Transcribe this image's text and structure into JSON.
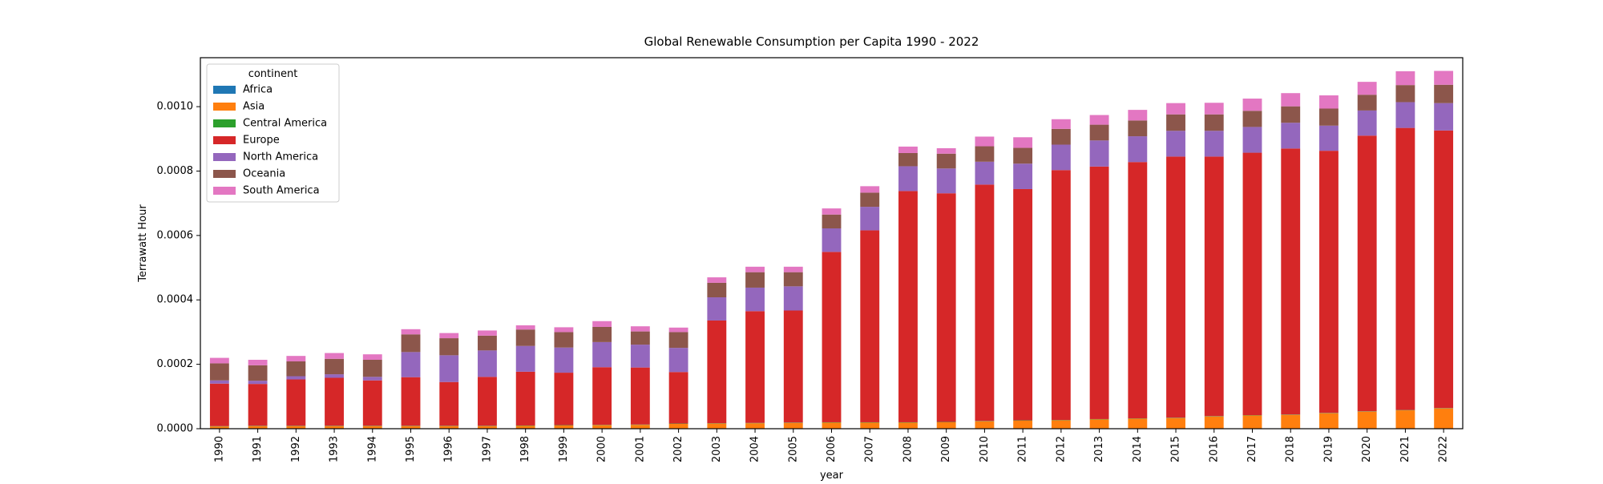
{
  "chart_data": {
    "type": "bar",
    "stacked": true,
    "title": "Global Renewable Consumption per Capita 1990 - 2022",
    "xlabel": "year",
    "ylabel": "Terrawatt Hour",
    "ylim": [
      0,
      0.001152
    ],
    "yticks": [
      "0.0000",
      "0.0002",
      "0.0004",
      "0.0006",
      "0.0008",
      "0.0010"
    ],
    "grid": false,
    "legend_position": "top-left",
    "legend_title": "continent",
    "categories": [
      "1990",
      "1991",
      "1992",
      "1993",
      "1994",
      "1995",
      "1996",
      "1997",
      "1998",
      "1999",
      "2000",
      "2001",
      "2002",
      "2003",
      "2004",
      "2005",
      "2006",
      "2007",
      "2008",
      "2009",
      "2010",
      "2011",
      "2012",
      "2013",
      "2014",
      "2015",
      "2016",
      "2017",
      "2018",
      "2019",
      "2020",
      "2021",
      "2022"
    ],
    "series": [
      {
        "name": "Africa",
        "color": "#1f77b4",
        "values": [
          1e-06,
          1e-06,
          1e-06,
          1e-06,
          1e-06,
          1e-06,
          1e-06,
          1e-06,
          1e-06,
          1e-06,
          1e-06,
          1e-06,
          1e-06,
          1e-06,
          1e-06,
          1e-06,
          1e-06,
          1e-06,
          1e-06,
          1e-06,
          1e-06,
          1e-06,
          1e-06,
          1e-06,
          1e-06,
          1e-06,
          1e-06,
          1e-06,
          1e-06,
          1e-06,
          1e-06,
          1e-06,
          1e-06
        ]
      },
      {
        "name": "Asia",
        "color": "#ff7f0e",
        "values": [
          6e-06,
          7e-06,
          7e-06,
          7e-06,
          7e-06,
          7e-06,
          7e-06,
          7e-06,
          8e-06,
          9e-06,
          1e-05,
          1.1e-05,
          1.4e-05,
          1.5e-05,
          1.6e-05,
          1.7e-05,
          1.8e-05,
          1.8e-05,
          1.8e-05,
          1.9e-05,
          2.2e-05,
          2.4e-05,
          2.5e-05,
          2.8e-05,
          3e-05,
          3.2e-05,
          3.7e-05,
          4e-05,
          4.2e-05,
          4.7e-05,
          5.2e-05,
          5.6e-05,
          6.2e-05
        ]
      },
      {
        "name": "Central America",
        "color": "#2ca02c",
        "values": [
          1e-06,
          1e-06,
          1e-06,
          1e-06,
          1e-06,
          1e-06,
          1e-06,
          1e-06,
          1e-06,
          1e-06,
          1e-06,
          1e-06,
          1e-06,
          1e-06,
          1e-06,
          1e-06,
          1e-06,
          1e-06,
          1e-06,
          1e-06,
          1e-06,
          1e-06,
          1e-06,
          1e-06,
          1e-06,
          1e-06,
          1e-06,
          1e-06,
          1e-06,
          1e-06,
          1e-06,
          1e-06,
          1e-06
        ]
      },
      {
        "name": "Europe",
        "color": "#d62728",
        "values": [
          0.000132,
          0.00013,
          0.000144,
          0.000149,
          0.000141,
          0.000151,
          0.000136,
          0.000152,
          0.000167,
          0.000163,
          0.000179,
          0.000177,
          0.00016,
          0.000319,
          0.000347,
          0.000348,
          0.000529,
          0.000596,
          0.000718,
          0.00071,
          0.000734,
          0.000718,
          0.000776,
          0.000784,
          0.000796,
          0.000811,
          0.000806,
          0.000815,
          0.000826,
          0.000814,
          0.000856,
          0.000876,
          0.000862
        ]
      },
      {
        "name": "North America",
        "color": "#9467bd",
        "values": [
          1e-05,
          1e-05,
          1e-05,
          1.1e-05,
          1.1e-05,
          7.8e-05,
          8.3e-05,
          8.2e-05,
          8e-05,
          7.8e-05,
          7.8e-05,
          7.1e-05,
          7.5e-05,
          7.2e-05,
          7.3e-05,
          7.5e-05,
          7.3e-05,
          7.3e-05,
          7.7e-05,
          7.7e-05,
          7.1e-05,
          7.9e-05,
          7.9e-05,
          8.1e-05,
          8e-05,
          8e-05,
          8e-05,
          8e-05,
          8e-05,
          7.8e-05,
          7.8e-05,
          8e-05,
          8.5e-05
        ]
      },
      {
        "name": "Oceania",
        "color": "#8c564b",
        "values": [
          5.3e-05,
          4.8e-05,
          4.6e-05,
          4.8e-05,
          5.3e-05,
          5.5e-05,
          5.3e-05,
          4.6e-05,
          5.1e-05,
          4.8e-05,
          4.7e-05,
          4.1e-05,
          4.9e-05,
          4.5e-05,
          4.8e-05,
          4.4e-05,
          4.3e-05,
          4.4e-05,
          4.1e-05,
          4.6e-05,
          4.8e-05,
          4.9e-05,
          4.9e-05,
          4.9e-05,
          4.9e-05,
          5.1e-05,
          5.1e-05,
          5e-05,
          5.1e-05,
          5.3e-05,
          4.9e-05,
          5.3e-05,
          5.7e-05
        ]
      },
      {
        "name": "South America",
        "color": "#e377c2",
        "values": [
          1.7e-05,
          1.7e-05,
          1.7e-05,
          1.8e-05,
          1.7e-05,
          1.6e-05,
          1.6e-05,
          1.6e-05,
          1.3e-05,
          1.5e-05,
          1.8e-05,
          1.6e-05,
          1.4e-05,
          1.7e-05,
          1.7e-05,
          1.7e-05,
          1.9e-05,
          2e-05,
          2e-05,
          1.7e-05,
          3e-05,
          3.3e-05,
          3e-05,
          3e-05,
          3.3e-05,
          3.5e-05,
          3.6e-05,
          3.8e-05,
          4.1e-05,
          4.1e-05,
          4e-05,
          4.3e-05,
          4.3e-05
        ]
      }
    ]
  }
}
